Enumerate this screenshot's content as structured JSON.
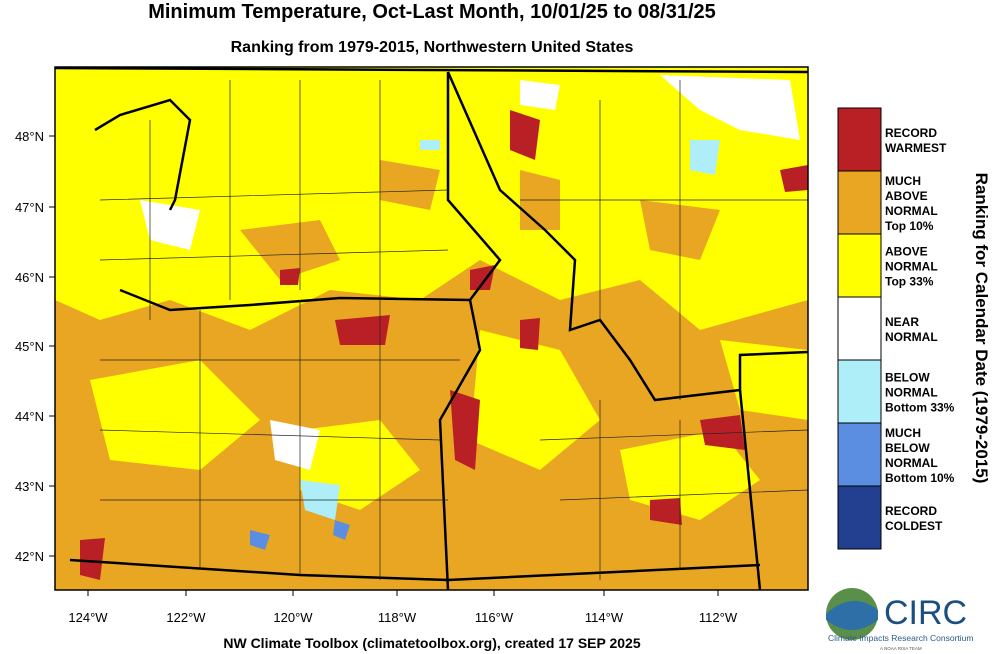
{
  "header": {
    "title": "Minimum Temperature, Oct-Last Month, 10/01/25 to 08/31/25",
    "subtitle": "Ranking from 1979-2015, Northwestern United States"
  },
  "map": {
    "lat_labels": [
      "48°N",
      "47°N",
      "46°N",
      "45°N",
      "44°N",
      "43°N",
      "42°N"
    ],
    "lon_labels": [
      "124°W",
      "122°W",
      "120°W",
      "118°W",
      "116°W",
      "114°W",
      "112°W"
    ]
  },
  "legend": {
    "title": "Ranking for Calendar Date (1979-2015)",
    "items": [
      {
        "lines": [
          "RECORD",
          "WARMEST"
        ],
        "color": "#b82025"
      },
      {
        "lines": [
          "MUCH",
          "ABOVE",
          "NORMAL",
          "Top 10%"
        ],
        "color": "#e9a623"
      },
      {
        "lines": [
          "ABOVE",
          "NORMAL",
          "Top 33%"
        ],
        "color": "#ffff00"
      },
      {
        "lines": [
          "NEAR",
          "NORMAL"
        ],
        "color": "#ffffff"
      },
      {
        "lines": [
          "BELOW",
          "NORMAL",
          "Bottom 33%"
        ],
        "color": "#aeeef8"
      },
      {
        "lines": [
          "MUCH",
          "BELOW",
          "NORMAL",
          "Bottom 10%"
        ],
        "color": "#5b8ee0"
      },
      {
        "lines": [
          "RECORD",
          "COLDEST"
        ],
        "color": "#22408f"
      }
    ]
  },
  "footer": "NW Climate Toolbox (climatetoolbox.org), created 17 SEP 2025",
  "logo": {
    "name": "CIRC",
    "subtitle": "Climate Impacts Research Consortium",
    "tagline": "A NOAA RISA TEAM"
  }
}
